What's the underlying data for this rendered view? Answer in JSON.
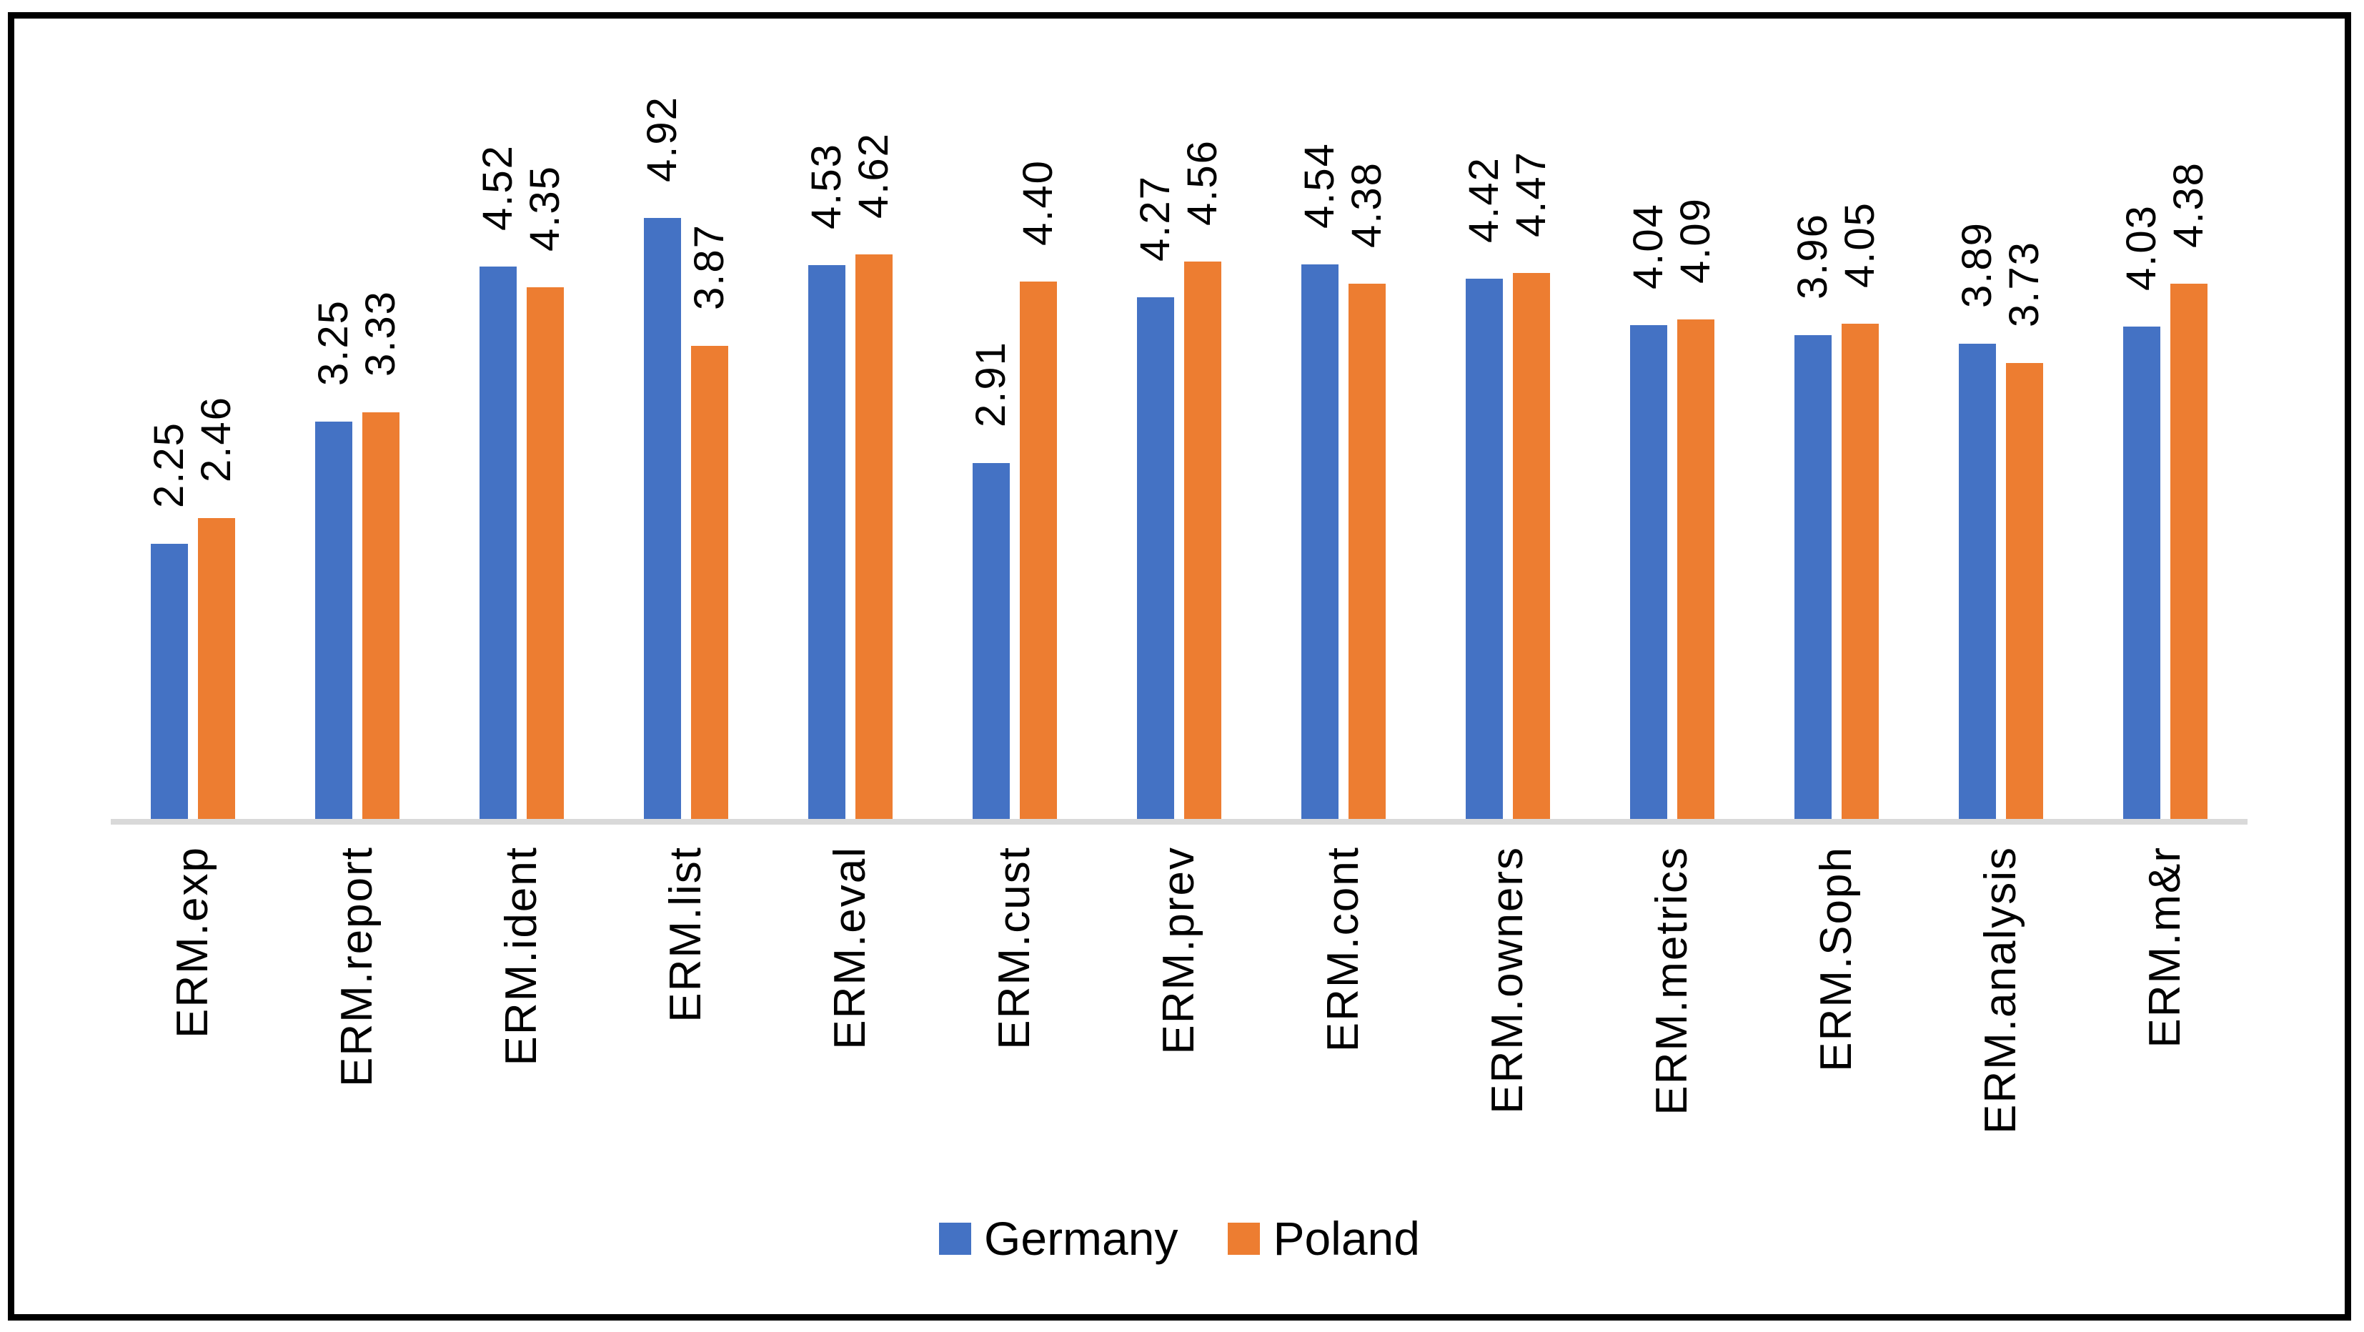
{
  "chart_data": {
    "type": "bar",
    "title": "",
    "xlabel": "",
    "ylabel": "",
    "categories": [
      "ERM.exp",
      "ERM.report",
      "ERM.ident",
      "ERM.list",
      "ERM.eval",
      "ERM.cust",
      "ERM.prev",
      "ERM.cont",
      "ERM.owners",
      "ERM.metrics",
      "ERM.Soph",
      "ERM.analysis",
      "ERM.m&r"
    ],
    "series": [
      {
        "name": "Germany",
        "color": "#4472C4",
        "values": [
          2.25,
          3.25,
          4.52,
          4.92,
          4.53,
          2.91,
          4.27,
          4.54,
          4.42,
          4.04,
          3.96,
          3.89,
          4.03
        ]
      },
      {
        "name": "Poland",
        "color": "#ED7D31",
        "values": [
          2.46,
          3.33,
          4.35,
          3.87,
          4.62,
          4.4,
          4.56,
          4.38,
          4.47,
          4.09,
          4.05,
          3.73,
          4.38
        ]
      }
    ],
    "ylim": [
      0,
      6
    ],
    "y_axis_visible": false,
    "gridlines": false,
    "legend_position": "bottom",
    "data_label_decimals": 2,
    "data_label_rotation": "vertical",
    "category_label_rotation": "vertical",
    "axis_line_color": "#D9D9D9",
    "text_color": "#000000",
    "background_color": "#FFFFFF",
    "border_color": "#000000"
  }
}
